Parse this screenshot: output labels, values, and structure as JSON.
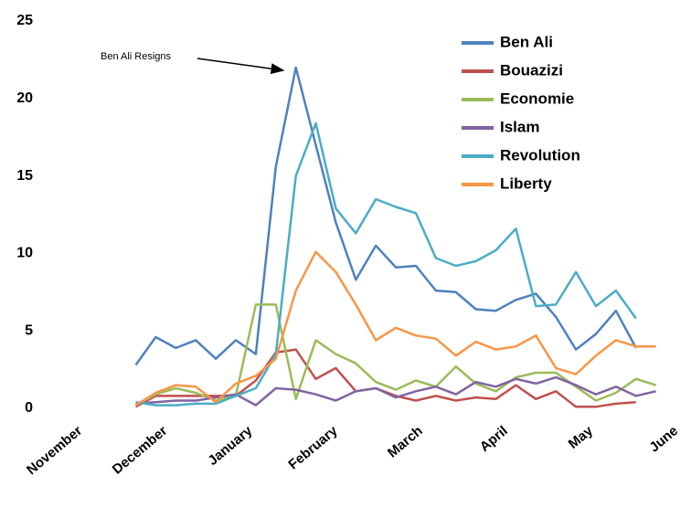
{
  "chart_data": {
    "type": "line",
    "annotation": "Ben Ali Resigns",
    "x": [
      0.65,
      0.885,
      1.12,
      1.355,
      1.59,
      1.825,
      2.06,
      2.295,
      2.53,
      2.765,
      3.0,
      3.235,
      3.47,
      3.705,
      3.94,
      4.175,
      4.41,
      4.645,
      4.88,
      5.115,
      5.35,
      5.585,
      5.82,
      6.055,
      6.29,
      6.525,
      6.76
    ],
    "xlim": [
      0,
      7
    ],
    "xticks": [
      {
        "value": 0,
        "label": "November"
      },
      {
        "value": 1,
        "label": "December"
      },
      {
        "value": 2,
        "label": "January"
      },
      {
        "value": 3,
        "label": "February"
      },
      {
        "value": 4,
        "label": "March"
      },
      {
        "value": 5,
        "label": "April"
      },
      {
        "value": 6,
        "label": "May"
      },
      {
        "value": 7,
        "label": "June"
      }
    ],
    "ylim": [
      0,
      25
    ],
    "yticks": [
      0,
      5,
      10,
      15,
      20,
      25
    ],
    "grid": false,
    "legend": "upper-right",
    "series": [
      {
        "name": "Ben Ali",
        "color": "#4f81bd",
        "values": [
          2.8,
          4.6,
          3.9,
          4.4,
          3.2,
          4.4,
          3.5,
          15.6,
          22,
          17,
          12,
          8.3,
          10.5,
          9.1,
          9.2,
          7.6,
          7.5,
          6.4,
          6.3,
          7,
          7.4,
          5.9,
          3.8,
          4.8,
          6.3,
          3.9,
          null
        ]
      },
      {
        "name": "Bouazizi",
        "color": "#c0504d",
        "values": [
          0.1,
          0.8,
          0.8,
          0.8,
          0.8,
          0.8,
          1.8,
          3.6,
          3.8,
          1.9,
          2.6,
          1.1,
          1.3,
          0.8,
          0.5,
          0.8,
          0.5,
          0.7,
          0.6,
          1.5,
          0.6,
          1.1,
          0.1,
          0.1,
          0.3,
          0.4,
          null
        ]
      },
      {
        "name": "Economie",
        "color": "#9bbb59",
        "values": [
          0.2,
          0.9,
          1.3,
          1.0,
          0.5,
          0.8,
          6.7,
          6.7,
          0.6,
          4.4,
          3.5,
          2.9,
          1.7,
          1.2,
          1.8,
          1.4,
          2.7,
          1.6,
          1.1,
          2.0,
          2.3,
          2.3,
          1.4,
          0.5,
          1.0,
          1.9,
          1.5
        ]
      },
      {
        "name": "Islam",
        "color": "#8064a2",
        "values": [
          0.3,
          0.4,
          0.5,
          0.5,
          0.7,
          0.9,
          0.2,
          1.3,
          1.2,
          0.9,
          0.5,
          1.1,
          1.3,
          0.7,
          1.1,
          1.4,
          0.9,
          1.7,
          1.4,
          1.9,
          1.6,
          2.0,
          1.5,
          0.9,
          1.4,
          0.8,
          1.1
        ]
      },
      {
        "name": "Revolution",
        "color": "#4bacc6",
        "values": [
          0.4,
          0.2,
          0.2,
          0.3,
          0.3,
          0.8,
          1.3,
          3.5,
          15,
          18.4,
          12.9,
          11.3,
          13.5,
          13,
          12.6,
          9.7,
          9.2,
          9.5,
          10.2,
          11.6,
          6.6,
          6.7,
          8.8,
          6.6,
          7.6,
          5.8,
          null
        ]
      },
      {
        "name": "Liberty",
        "color": "#f79646",
        "values": [
          0.2,
          1.0,
          1.5,
          1.4,
          0.4,
          1.6,
          2.1,
          3.2,
          7.6,
          10.1,
          8.8,
          6.7,
          4.4,
          5.2,
          4.7,
          4.5,
          3.4,
          4.3,
          3.8,
          4.0,
          4.7,
          2.6,
          2.2,
          3.4,
          4.4,
          4.0,
          4.0
        ]
      }
    ]
  }
}
